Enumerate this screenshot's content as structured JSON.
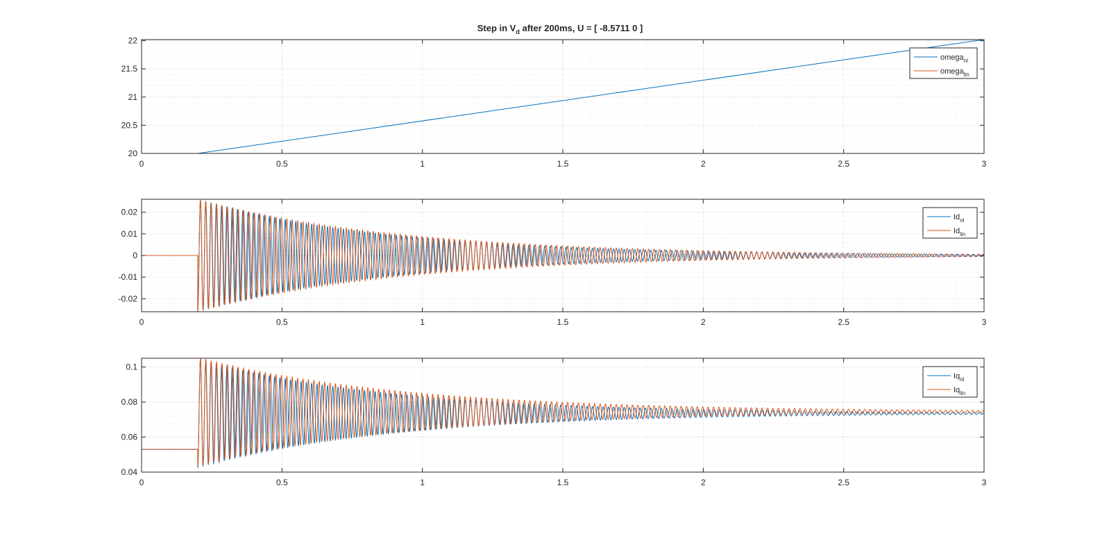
{
  "figure": {
    "title_parts": [
      "Step in V",
      "d",
      " after 200ms, U = [ -8.5711 0 ]"
    ]
  },
  "colors": {
    "nl": "#0072BD",
    "lin": "#D95319",
    "grid": "#e6e6e6",
    "axes": "#262626"
  },
  "chart_data": [
    {
      "type": "line",
      "title": "Step in Vd after 200ms, U = [ -8.5711 0 ]",
      "xlim": [
        0,
        3
      ],
      "ylim": [
        20,
        22.02
      ],
      "xticks": [
        0,
        0.5,
        1,
        1.5,
        2,
        2.5,
        3
      ],
      "xtick_labels": [
        "0",
        "0.5",
        "1",
        "1.5",
        "2",
        "2.5",
        "3"
      ],
      "yticks": [
        20,
        20.5,
        21,
        21.5,
        22
      ],
      "ytick_labels": [
        "20",
        "20.5",
        "21",
        "21.5",
        "22"
      ],
      "grid": true,
      "minor_grid": true,
      "legend_location": "top-right",
      "series": [
        {
          "name": "omega_nl",
          "label_base": "omega",
          "label_sub": "nl",
          "color_key": "nl",
          "model": "ramp",
          "x": [
            0,
            0.2,
            3
          ],
          "y": [
            20,
            20,
            22.02
          ]
        },
        {
          "name": "omega_lin",
          "label_base": "omega",
          "label_sub": "lin",
          "color_key": "lin",
          "model": "constant",
          "x": [
            0,
            3
          ],
          "y": [
            20,
            20
          ]
        }
      ]
    },
    {
      "type": "line",
      "xlim": [
        0,
        3
      ],
      "ylim": [
        -0.026,
        0.026
      ],
      "xticks": [
        0,
        0.5,
        1,
        1.5,
        2,
        2.5,
        3
      ],
      "xtick_labels": [
        "0",
        "0.5",
        "1",
        "1.5",
        "2",
        "2.5",
        "3"
      ],
      "yticks": [
        -0.02,
        -0.01,
        0,
        0.01,
        0.02
      ],
      "ytick_labels": [
        "-0.02",
        "-0.01",
        "0",
        "0.01",
        "0.02"
      ],
      "grid": true,
      "minor_grid": true,
      "legend_location": "top-right",
      "series": [
        {
          "name": "Id_nl",
          "label_base": "Id",
          "label_sub": "nl",
          "color_key": "nl",
          "model": "damped_oscillation",
          "step_time": 0.2,
          "initial": 0,
          "final": 0,
          "amplitude": 0.026,
          "decay_rate": 1.45,
          "frequency_hz": 53,
          "phase": 0
        },
        {
          "name": "Id_lin",
          "label_base": "Id",
          "label_sub": "lin",
          "color_key": "lin",
          "model": "damped_oscillation",
          "step_time": 0.2,
          "initial": 0,
          "final": 0,
          "amplitude": 0.026,
          "decay_rate": 1.35,
          "frequency_hz": 52,
          "phase": 0
        }
      ]
    },
    {
      "type": "line",
      "xlim": [
        0,
        3
      ],
      "ylim": [
        0.04,
        0.105
      ],
      "xticks": [
        0,
        0.5,
        1,
        1.5,
        2,
        2.5,
        3
      ],
      "xtick_labels": [
        "0",
        "0.5",
        "1",
        "1.5",
        "2",
        "2.5",
        "3"
      ],
      "yticks": [
        0.04,
        0.06,
        0.08,
        0.1
      ],
      "ytick_labels": [
        "0.04",
        "0.06",
        "0.08",
        "0.1"
      ],
      "grid": true,
      "minor_grid": true,
      "legend_location": "top-right",
      "series": [
        {
          "name": "Iq_nl",
          "label_base": "Iq",
          "label_sub": "nl",
          "color_key": "nl",
          "model": "damped_oscillation",
          "step_time": 0.2,
          "initial": 0.053,
          "final": 0.0735,
          "amplitude": 0.031,
          "decay_rate": 1.45,
          "frequency_hz": 53,
          "phase": 0
        },
        {
          "name": "Iq_lin",
          "label_base": "Iq",
          "label_sub": "lin",
          "color_key": "lin",
          "model": "damped_oscillation",
          "step_time": 0.2,
          "initial": 0.053,
          "final": 0.0745,
          "amplitude": 0.031,
          "decay_rate": 1.35,
          "frequency_hz": 52,
          "phase": 0
        }
      ]
    }
  ]
}
